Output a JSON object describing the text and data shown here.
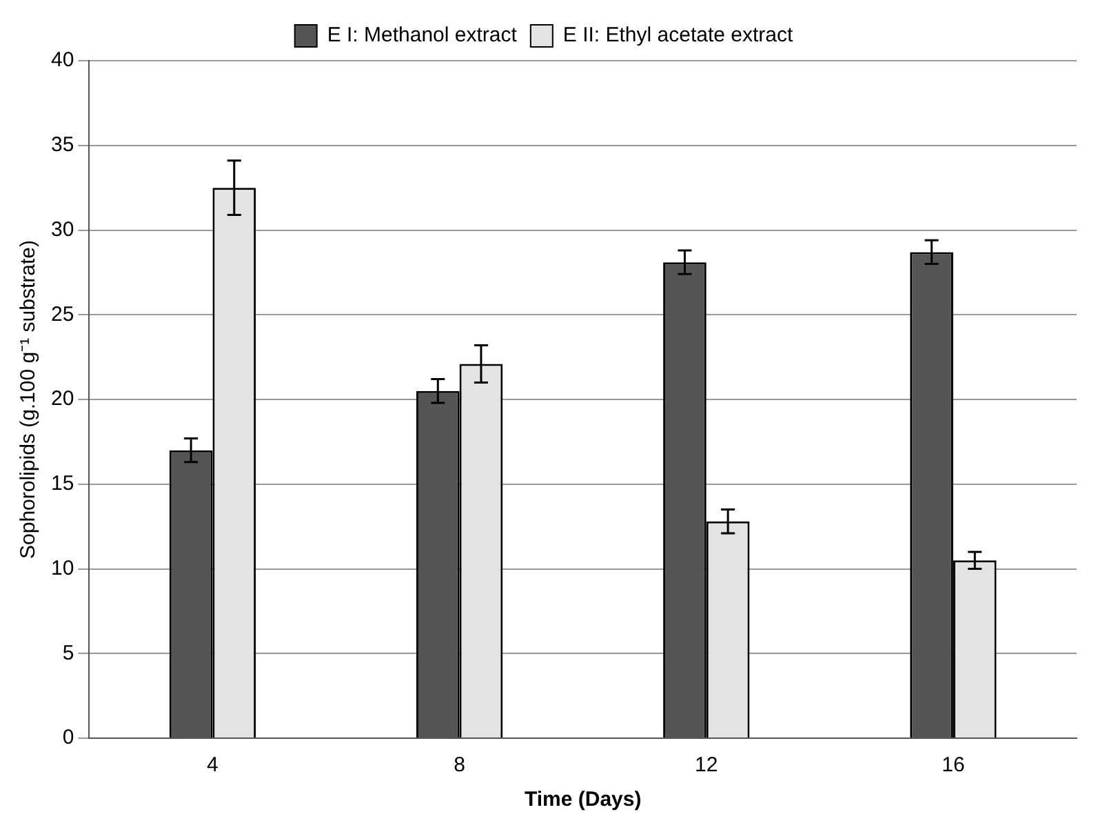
{
  "chart_data": {
    "type": "bar",
    "xlabel": "Time (Days)",
    "ylabel": "Sophorolipids (g.100 g⁻¹ substrate)",
    "categories": [
      "4",
      "8",
      "12",
      "16"
    ],
    "series": [
      {
        "name": "E I: Methanol extract",
        "color": "#555555",
        "values": [
          17.0,
          20.5,
          28.1,
          28.7
        ],
        "errors": [
          0.7,
          0.7,
          0.7,
          0.7
        ]
      },
      {
        "name": "E II: Ethyl acetate extract",
        "color": "#e3e3e3",
        "values": [
          32.5,
          22.1,
          12.8,
          10.5
        ],
        "errors": [
          1.6,
          1.1,
          0.7,
          0.5
        ]
      }
    ],
    "ylim": [
      0,
      40
    ],
    "yticks": [
      0,
      5,
      10,
      15,
      20,
      25,
      30,
      35,
      40
    ],
    "grid": "y",
    "legend": "top"
  }
}
